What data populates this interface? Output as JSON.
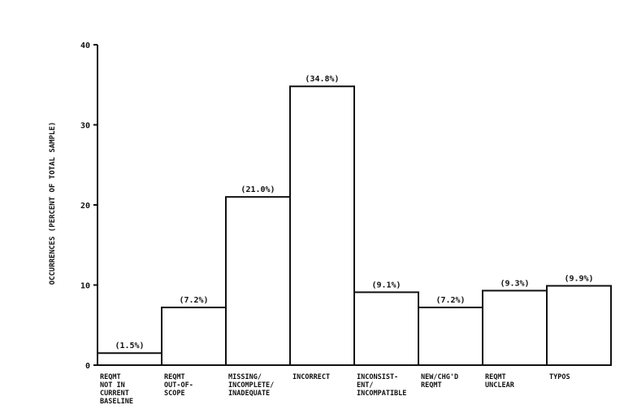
{
  "chart_data": {
    "type": "bar",
    "title": "",
    "xlabel": "",
    "ylabel": "OCCURRENCES (PERCENT OF TOTAL SAMPLE)",
    "ylim": [
      0,
      40
    ],
    "yticks": [
      0,
      10,
      20,
      30,
      40
    ],
    "yticklabels": [
      "0",
      "10",
      "20",
      "30",
      "40"
    ],
    "grid": false,
    "legend": "none",
    "bar_fill": "#ffffff",
    "bar_stroke": "#111111",
    "categories": [
      [
        "REQMT",
        "NOT IN",
        "CURRENT",
        "BASELINE"
      ],
      [
        "REQMT",
        "OUT-OF-",
        "SCOPE"
      ],
      [
        "MISSING/",
        "INCOMPLETE/",
        "INADEQUATE"
      ],
      [
        "INCORRECT"
      ],
      [
        "INCONSIST-",
        "ENT/",
        "INCOMPATIBLE"
      ],
      [
        "NEW/CHG'D",
        "REQMT"
      ],
      [
        "REQMT",
        "UNCLEAR"
      ],
      [
        "TYPOS"
      ]
    ],
    "values": [
      1.5,
      7.2,
      21.0,
      34.8,
      9.1,
      7.2,
      9.3,
      9.9
    ],
    "data_labels": [
      "(1.5%)",
      "(7.2%)",
      "(21.0%)",
      "(34.8%)",
      "(9.1%)",
      "(7.2%)",
      "(9.3%)",
      "(9.9%)"
    ]
  }
}
